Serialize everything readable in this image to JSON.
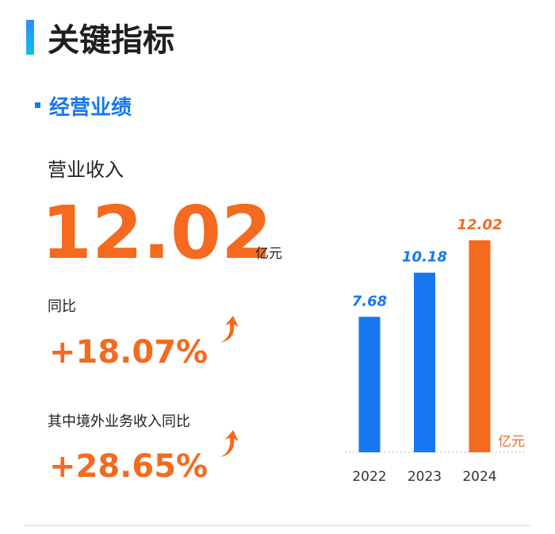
{
  "header": {
    "title": "关键指标",
    "section": "经营业绩"
  },
  "metrics": {
    "revenue_label": "营业收入",
    "revenue_value": "12.02",
    "revenue_unit": "亿元",
    "yoy_label": "同比",
    "yoy_value": "+18.07%",
    "overseas_label": "其中境外业务收入同比",
    "overseas_value": "+28.65%"
  },
  "chart_data": {
    "type": "bar",
    "categories": [
      "2022",
      "2023",
      "2024"
    ],
    "values": [
      7.68,
      10.18,
      12.02
    ],
    "colors": [
      "#1677f0",
      "#1677f0",
      "#f46a1e"
    ],
    "unit": "亿元",
    "ylim": [
      0,
      13
    ]
  }
}
